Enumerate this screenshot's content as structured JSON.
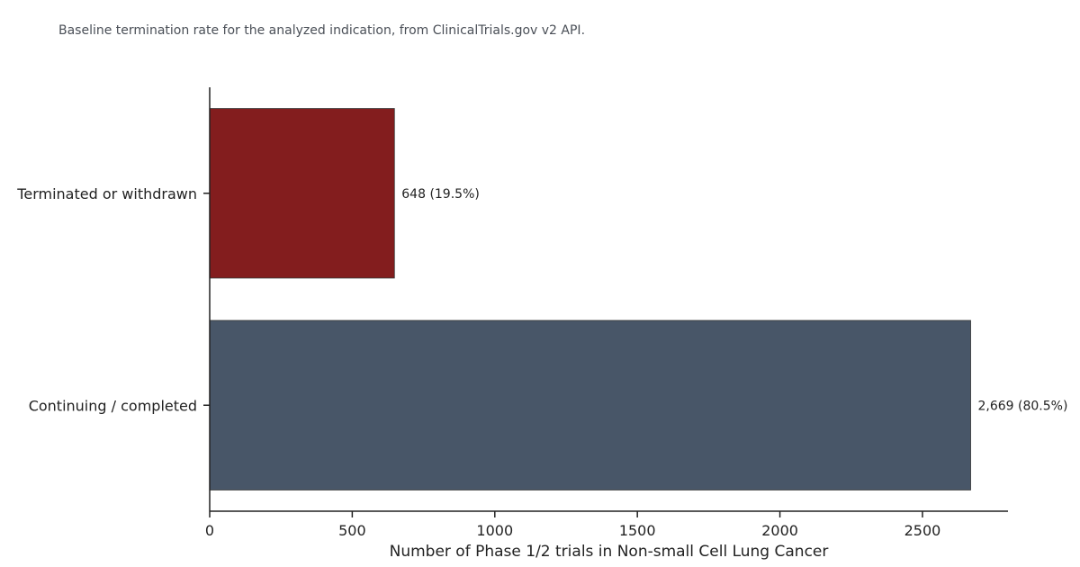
{
  "subtitle": "Baseline termination rate for the analyzed indication, from ClinicalTrials.gov v2 API.",
  "chart_data": {
    "type": "bar",
    "orientation": "horizontal",
    "categories": [
      "Terminated or withdrawn",
      "Continuing / completed"
    ],
    "values": [
      648,
      2669
    ],
    "data_labels": [
      "648 (19.5%)",
      "2,669 (80.5%)"
    ],
    "colors": [
      "#831d1e",
      "#485668"
    ],
    "xlabel": "Number of Phase 1/2 trials in Non-small Cell Lung Cancer",
    "ylabel": "",
    "xlim": [
      0,
      2800
    ],
    "xticks": [
      0,
      500,
      1000,
      1500,
      2000,
      2500
    ],
    "grid": false
  }
}
